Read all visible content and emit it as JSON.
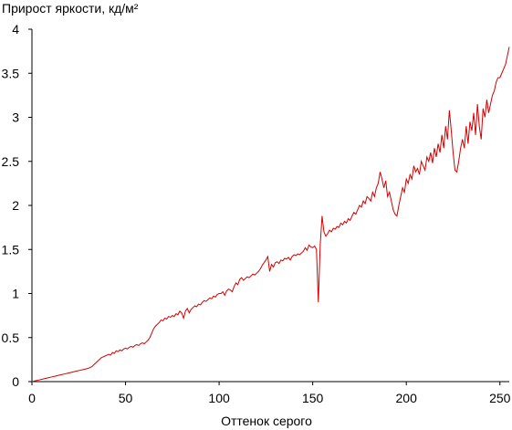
{
  "chart_data": {
    "type": "line",
    "title": "Прирост яркости, кд/м²",
    "x_label": "Оттенок серого",
    "x": [
      0,
      1,
      2,
      3,
      4,
      5,
      6,
      7,
      8,
      9,
      10,
      11,
      12,
      13,
      14,
      15,
      16,
      17,
      18,
      19,
      20,
      21,
      22,
      23,
      24,
      25,
      26,
      27,
      28,
      29,
      30,
      31,
      32,
      33,
      34,
      35,
      36,
      37,
      38,
      39,
      40,
      41,
      42,
      43,
      44,
      45,
      46,
      47,
      48,
      49,
      50,
      51,
      52,
      53,
      54,
      55,
      56,
      57,
      58,
      59,
      60,
      61,
      62,
      63,
      64,
      65,
      66,
      67,
      68,
      69,
      70,
      71,
      72,
      73,
      74,
      75,
      76,
      77,
      78,
      79,
      80,
      81,
      82,
      83,
      84,
      85,
      86,
      87,
      88,
      89,
      90,
      91,
      92,
      93,
      94,
      95,
      96,
      97,
      98,
      99,
      100,
      101,
      102,
      103,
      104,
      105,
      106,
      107,
      108,
      109,
      110,
      111,
      112,
      113,
      114,
      115,
      116,
      117,
      118,
      119,
      120,
      121,
      122,
      123,
      124,
      125,
      126,
      127,
      128,
      129,
      130,
      131,
      132,
      133,
      134,
      135,
      136,
      137,
      138,
      139,
      140,
      141,
      142,
      143,
      144,
      145,
      146,
      147,
      148,
      149,
      150,
      151,
      152,
      153,
      154,
      155,
      156,
      157,
      158,
      159,
      160,
      161,
      162,
      163,
      164,
      165,
      166,
      167,
      168,
      169,
      170,
      171,
      172,
      173,
      174,
      175,
      176,
      177,
      178,
      179,
      180,
      181,
      182,
      183,
      184,
      185,
      186,
      187,
      188,
      189,
      190,
      191,
      192,
      193,
      194,
      195,
      196,
      197,
      198,
      199,
      200,
      201,
      202,
      203,
      204,
      205,
      206,
      207,
      208,
      209,
      210,
      211,
      212,
      213,
      214,
      215,
      216,
      217,
      218,
      219,
      220,
      221,
      222,
      223,
      224,
      225,
      226,
      227,
      228,
      229,
      230,
      231,
      232,
      233,
      234,
      235,
      236,
      237,
      238,
      239,
      240,
      241,
      242,
      243,
      244,
      245,
      246,
      247,
      248,
      249,
      250,
      251,
      252,
      253,
      254,
      255
    ],
    "series": [
      {
        "color": "#d40000",
        "values": [
          0,
          0.005,
          0.01,
          0.015,
          0.02,
          0.025,
          0.03,
          0.035,
          0.04,
          0.045,
          0.05,
          0.055,
          0.06,
          0.065,
          0.07,
          0.075,
          0.08,
          0.085,
          0.09,
          0.095,
          0.1,
          0.105,
          0.11,
          0.115,
          0.12,
          0.125,
          0.13,
          0.135,
          0.14,
          0.145,
          0.15,
          0.16,
          0.17,
          0.19,
          0.21,
          0.23,
          0.25,
          0.27,
          0.28,
          0.29,
          0.3,
          0.31,
          0.3,
          0.33,
          0.32,
          0.35,
          0.34,
          0.36,
          0.35,
          0.37,
          0.38,
          0.37,
          0.39,
          0.4,
          0.39,
          0.41,
          0.42,
          0.41,
          0.43,
          0.44,
          0.43,
          0.45,
          0.47,
          0.5,
          0.55,
          0.6,
          0.63,
          0.65,
          0.67,
          0.7,
          0.69,
          0.72,
          0.71,
          0.74,
          0.73,
          0.75,
          0.74,
          0.77,
          0.76,
          0.8,
          0.78,
          0.72,
          0.8,
          0.83,
          0.78,
          0.82,
          0.84,
          0.86,
          0.85,
          0.88,
          0.87,
          0.9,
          0.92,
          0.91,
          0.93,
          0.95,
          0.94,
          0.97,
          0.96,
          0.99,
          1.0,
          1.0,
          1.02,
          0.98,
          1.03,
          1.05,
          1.04,
          1.02,
          1.08,
          1.12,
          1.1,
          1.16,
          1.18,
          1.15,
          1.17,
          1.19,
          1.18,
          1.2,
          1.22,
          1.21,
          1.23,
          1.25,
          1.28,
          1.32,
          1.35,
          1.38,
          1.42,
          1.25,
          1.33,
          1.3,
          1.35,
          1.36,
          1.34,
          1.38,
          1.37,
          1.4,
          1.39,
          1.41,
          1.38,
          1.42,
          1.44,
          1.43,
          1.45,
          1.44,
          1.46,
          1.48,
          1.52,
          1.49,
          1.55,
          1.53,
          1.52,
          1.54,
          1.5,
          0.9,
          1.55,
          1.88,
          1.7,
          1.65,
          1.68,
          1.72,
          1.7,
          1.74,
          1.73,
          1.76,
          1.75,
          1.8,
          1.78,
          1.82,
          1.8,
          1.85,
          1.83,
          1.88,
          1.92,
          1.9,
          1.95,
          2.0,
          1.98,
          2.05,
          2.02,
          2.1,
          2.08,
          2.05,
          2.15,
          2.1,
          2.2,
          2.25,
          2.38,
          2.3,
          2.2,
          2.28,
          2.1,
          2.15,
          2.05,
          1.95,
          1.9,
          1.88,
          2.0,
          2.1,
          2.2,
          2.15,
          2.3,
          2.25,
          2.35,
          2.3,
          2.45,
          2.38,
          2.42,
          2.35,
          2.5,
          2.45,
          2.4,
          2.55,
          2.5,
          2.6,
          2.48,
          2.65,
          2.55,
          2.7,
          2.6,
          2.8,
          2.65,
          2.9,
          2.75,
          3.08,
          2.85,
          2.6,
          2.4,
          2.38,
          2.5,
          2.65,
          2.75,
          2.65,
          2.9,
          2.7,
          2.95,
          2.85,
          3.05,
          2.8,
          3.15,
          2.9,
          2.75,
          3.1,
          3.0,
          3.2,
          3.05,
          3.15,
          3.25,
          3.3,
          3.4,
          3.45,
          3.45,
          3.5,
          3.55,
          3.6,
          3.7,
          3.8
        ]
      }
    ],
    "xlim": [
      0,
      255
    ],
    "ylim": [
      0,
      4
    ],
    "xticks": [
      0,
      50,
      100,
      150,
      200,
      250
    ],
    "yticks": [
      0,
      0.5,
      1,
      1.5,
      2,
      2.5,
      3,
      3.5,
      4
    ]
  }
}
